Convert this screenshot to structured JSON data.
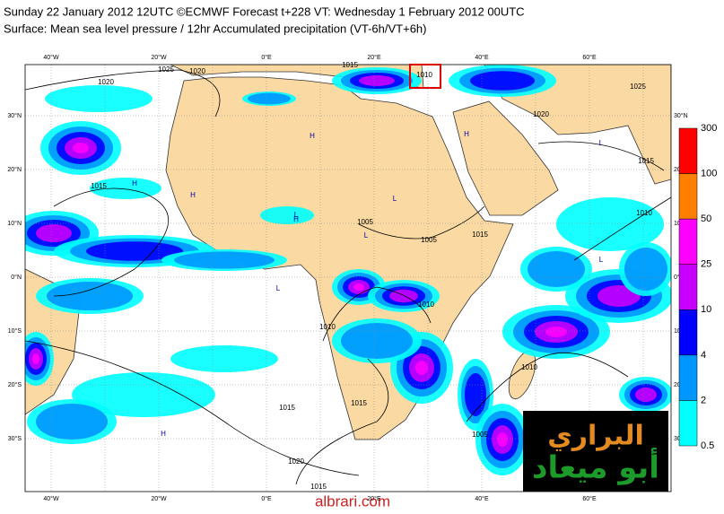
{
  "header": {
    "line1": "Sunday 22 January 2012 12UTC ©ECMWF Forecast t+228 VT: Wednesday 1 February 2012 00UTC",
    "line2": "Surface: Mean sea level pressure / 12hr Accumulated precipitation (VT-6h/VT+6h)"
  },
  "map": {
    "lon_labels": [
      "40°W",
      "20°W",
      "0°E",
      "20°E",
      "40°E",
      "60°E"
    ],
    "lat_labels": [
      "30°N",
      "20°N",
      "10°N",
      "0°N",
      "10°S",
      "20°S",
      "30°S"
    ],
    "isobar_labels": [
      "1025",
      "1020",
      "1020",
      "1015",
      "1010",
      "1025",
      "1020",
      "1015",
      "1015",
      "1010",
      "1005",
      "1005",
      "1015",
      "1010",
      "1010",
      "1010",
      "1015",
      "1015",
      "1020",
      "1015",
      "1005"
    ],
    "pressure_markers": [
      "H",
      "H",
      "H",
      "H",
      "L",
      "L",
      "L",
      "L",
      "H",
      "L",
      "H",
      "L"
    ]
  },
  "colorbar": {
    "levels": [
      300,
      100,
      50,
      25,
      10,
      4,
      2,
      0.5
    ],
    "colors": [
      "#ff0000",
      "#ff8000",
      "#ff00ff",
      "#c800ff",
      "#0000ff",
      "#0096ff",
      "#00ffff"
    ]
  },
  "logo": {
    "line1": "البراري",
    "line2": "أبو ميعاد"
  },
  "footer": "albrari.com"
}
